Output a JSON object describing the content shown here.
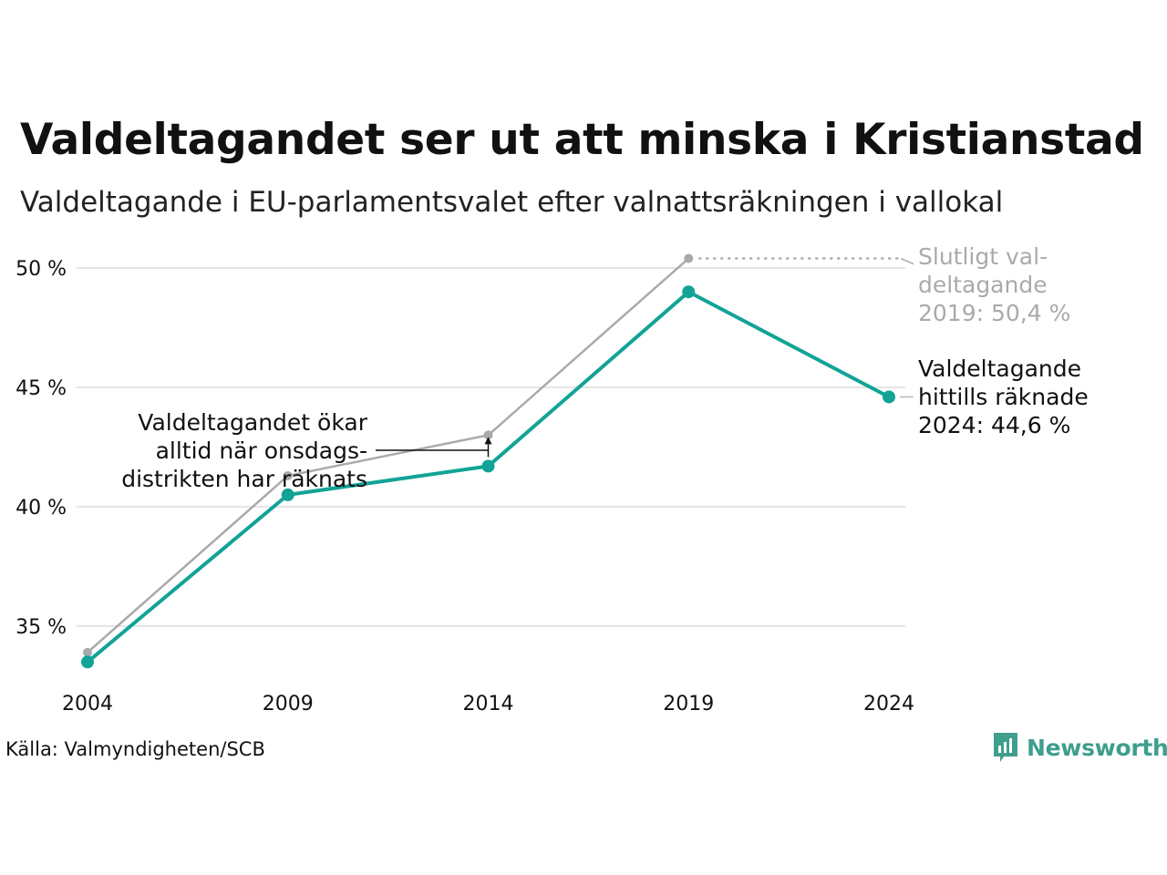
{
  "title": "Valdeltagandet ser ut att minska i Kristianstad",
  "subtitle": "Valdeltagande i EU-parlamentsvalet efter valnattsräkningen i vallokal",
  "source": "Källa: Valmyndigheten/SCB",
  "brand": {
    "name": "Newsworthy",
    "icon": "newsworthy-logo-icon",
    "color": "#3f9e8d"
  },
  "colors": {
    "primary": "#11a396",
    "secondary": "#aaaaaa",
    "grid": "#e5e5e5",
    "text": "#111111"
  },
  "chart_data": {
    "type": "line",
    "x": [
      "2004",
      "2009",
      "2014",
      "2019",
      "2024"
    ],
    "ylim": [
      32.5,
      51.5
    ],
    "y_ticks": [
      35,
      40,
      45,
      50
    ],
    "y_tick_labels": [
      "35 %",
      "40 %",
      "45 %",
      "50 %"
    ],
    "grid": true,
    "series": [
      {
        "name": "Slutligt valdeltagande",
        "color": "#aaaaaa",
        "values": [
          33.9,
          41.3,
          43.0,
          50.4,
          null
        ]
      },
      {
        "name": "Valdeltagande hittills räknade",
        "color": "#11a396",
        "values": [
          33.5,
          40.5,
          41.7,
          49.0,
          44.6
        ]
      }
    ],
    "annotations": {
      "final_turnout": [
        "Slutligt val-",
        "deltagande",
        "2019: 50,4 %"
      ],
      "counted_turnout": [
        "Valdeltagande",
        "hittills räknade",
        "2024: 44,6 %"
      ],
      "note": [
        "Valdeltagandet ökar",
        "alltid när onsdags-",
        "distrikten har räknats"
      ]
    }
  }
}
